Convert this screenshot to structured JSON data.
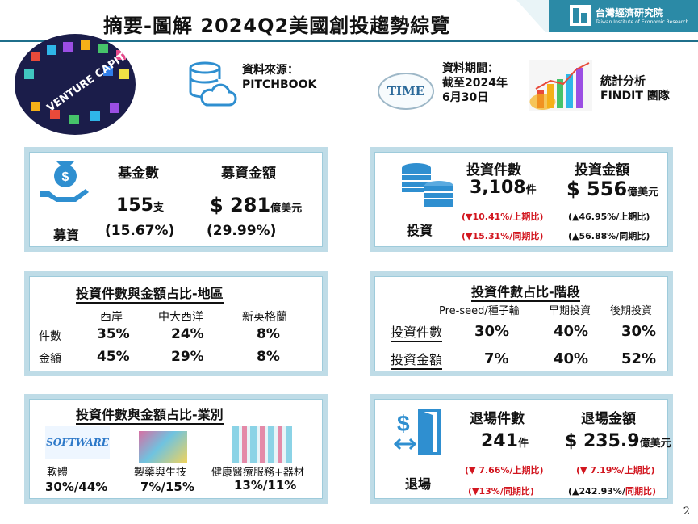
{
  "header": {
    "title": "摘要-圖解 2024Q2美國創投趨勢綜覽",
    "logo_name": "台灣經濟研究院",
    "logo_en": "Taiwan Institute of Economic Research"
  },
  "meta": {
    "source_label": "資料來源：",
    "source_value": "PITCHBOOK",
    "period_label": "資料期間：",
    "period_value1": "截至2024年",
    "period_value2": "6月30日",
    "time_badge": "TIME",
    "team_line1": "統計分析",
    "team_line2": "FINDIT 團隊",
    "vc_banner": "VENTURE CAPITAL"
  },
  "fundraising": {
    "category": "募資",
    "funds_header": "基金數",
    "amount_header": "募資金額",
    "funds_value": "155",
    "funds_unit": "支",
    "funds_change": "(15.67%)",
    "amount_value": "$ 281",
    "amount_unit": "億美元",
    "amount_change": "(29.99%)"
  },
  "investment": {
    "category": "投資",
    "deals_header": "投資件數",
    "amount_header": "投資金額",
    "deals_value": "3,108",
    "deals_unit": "件",
    "amount_value": "$ 556",
    "amount_unit": "億美元",
    "deals_qoq_pct": "(▼10.41%/",
    "deals_qoq_label": "上期比)",
    "deals_yoy_pct": "(▼15.31%/",
    "deals_yoy_label": "同期比)",
    "amount_qoq_pct": "(▲46.95%/",
    "amount_qoq_label": "上期比)",
    "amount_yoy_pct": "(▲56.88%/",
    "amount_yoy_label": "同期比)"
  },
  "region": {
    "title": "投資件數與金額占比-地區",
    "columns": [
      "西岸",
      "中大西洋",
      "新英格蘭"
    ],
    "rows": [
      {
        "label": "件數",
        "values": [
          "35%",
          "24%",
          "8%"
        ]
      },
      {
        "label": "金額",
        "values": [
          "45%",
          "29%",
          "8%"
        ]
      }
    ]
  },
  "stage": {
    "title": "投資件數占比-階段",
    "columns": [
      "Pre-seed/種子輪",
      "早期投資",
      "後期投資"
    ],
    "rows": [
      {
        "label": "投資件數",
        "values": [
          "30%",
          "40%",
          "30%"
        ]
      },
      {
        "label": "投資金額",
        "values": [
          "7%",
          "40%",
          "52%"
        ]
      }
    ]
  },
  "industry": {
    "title": "投資件數與金額占比-業別",
    "software_img_text": "SOFTWARE",
    "items": [
      {
        "label": "軟體",
        "value": "30%/44%"
      },
      {
        "label": "製藥與生技",
        "value": "7%/15%"
      },
      {
        "label": "健康醫療服務+器材",
        "value": "13%/11%"
      }
    ]
  },
  "exit": {
    "category": "退場",
    "count_header": "退場件數",
    "amount_header": "退場金額",
    "count_value": "241",
    "count_unit": "件",
    "amount_value": "$ 235.9",
    "amount_unit": "億美元",
    "count_qoq_pct": "(▼ 7.66%/",
    "count_qoq_label": "上期比)",
    "count_yoy_pct": "(▼13%/",
    "count_yoy_label": "同期比)",
    "amount_qoq_pct": "(▼ 7.19%/",
    "amount_qoq_label": "上期比)",
    "amount_yoy_pct": "(▲242.93%/",
    "amount_yoy_label": "同期比)"
  },
  "footer": {
    "page_number": "2"
  },
  "colors": {
    "accent": "#2b8aa6",
    "panel_border": "#bfdce7",
    "decline": "#d2161f",
    "icon_blue": "#2f8fd0"
  }
}
